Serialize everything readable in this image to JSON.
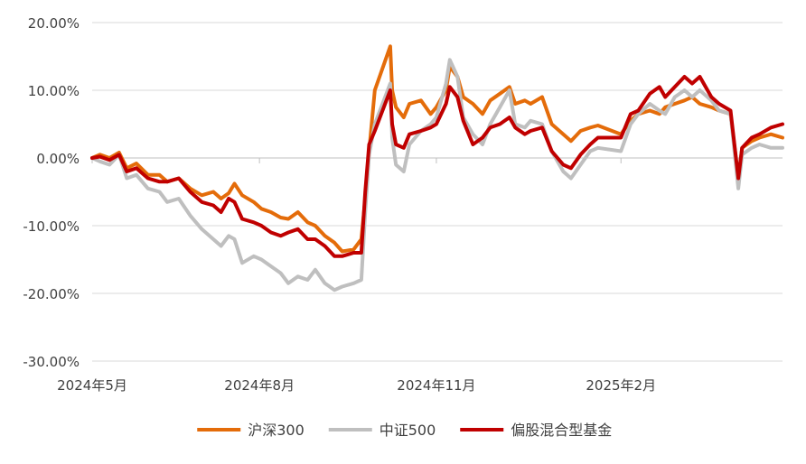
{
  "chart_data": {
    "type": "line",
    "title": "",
    "xlabel": "",
    "ylabel": "",
    "ylim": [
      -30,
      20
    ],
    "y_ticks": [
      20,
      10,
      0,
      -10,
      -20,
      -30
    ],
    "y_tick_labels": [
      "20.00%",
      "10.00%",
      "0.00%",
      "-10.00%",
      "-20.00%",
      "-30.00%"
    ],
    "x_range": [
      "2024-05-06",
      "2025-04-30"
    ],
    "x_ticks": [
      "2024-05-06",
      "2024-08-01",
      "2024-11-01",
      "2025-02-05"
    ],
    "x_tick_labels": [
      "2024年5月",
      "2024年8月",
      "2024年11月",
      "2025年2月"
    ],
    "grid": "horizontal",
    "legend_position": "bottom-center",
    "series": [
      {
        "name": "沪深300",
        "color": "#e46c0a",
        "points": [
          [
            "2024-05-06",
            0
          ],
          [
            "2024-05-10",
            0.5
          ],
          [
            "2024-05-15",
            0
          ],
          [
            "2024-05-20",
            0.8
          ],
          [
            "2024-05-24",
            -1.5
          ],
          [
            "2024-05-29",
            -0.8
          ],
          [
            "2024-06-04",
            -2.5
          ],
          [
            "2024-06-10",
            -2.5
          ],
          [
            "2024-06-14",
            -3.5
          ],
          [
            "2024-06-20",
            -3.0
          ],
          [
            "2024-06-26",
            -4.5
          ],
          [
            "2024-07-02",
            -5.5
          ],
          [
            "2024-07-08",
            -5.0
          ],
          [
            "2024-07-12",
            -6.0
          ],
          [
            "2024-07-16",
            -5.2
          ],
          [
            "2024-07-19",
            -3.8
          ],
          [
            "2024-07-23",
            -5.5
          ],
          [
            "2024-07-29",
            -6.5
          ],
          [
            "2024-08-02",
            -7.5
          ],
          [
            "2024-08-07",
            -8.0
          ],
          [
            "2024-08-12",
            -8.8
          ],
          [
            "2024-08-16",
            -9.0
          ],
          [
            "2024-08-21",
            -8.0
          ],
          [
            "2024-08-26",
            -9.5
          ],
          [
            "2024-08-30",
            -10.0
          ],
          [
            "2024-09-04",
            -11.5
          ],
          [
            "2024-09-09",
            -12.5
          ],
          [
            "2024-09-13",
            -13.8
          ],
          [
            "2024-09-19",
            -13.5
          ],
          [
            "2024-09-23",
            -12.0
          ],
          [
            "2024-09-25",
            -6.0
          ],
          [
            "2024-09-27",
            1.0
          ],
          [
            "2024-09-30",
            10.0
          ],
          [
            "2024-10-08",
            16.5
          ],
          [
            "2024-10-09",
            10.0
          ],
          [
            "2024-10-11",
            7.5
          ],
          [
            "2024-10-15",
            6.0
          ],
          [
            "2024-10-18",
            8.0
          ],
          [
            "2024-10-24",
            8.5
          ],
          [
            "2024-10-29",
            6.5
          ],
          [
            "2024-11-01",
            7.5
          ],
          [
            "2024-11-06",
            10.0
          ],
          [
            "2024-11-08",
            13.5
          ],
          [
            "2024-11-12",
            12.0
          ],
          [
            "2024-11-15",
            9.0
          ],
          [
            "2024-11-20",
            8.0
          ],
          [
            "2024-11-25",
            6.5
          ],
          [
            "2024-11-29",
            8.5
          ],
          [
            "2024-12-04",
            9.5
          ],
          [
            "2024-12-09",
            10.5
          ],
          [
            "2024-12-12",
            8.0
          ],
          [
            "2024-12-17",
            8.5
          ],
          [
            "2024-12-20",
            8.0
          ],
          [
            "2024-12-26",
            9.0
          ],
          [
            "2024-12-31",
            5.0
          ],
          [
            "2025-01-06",
            3.5
          ],
          [
            "2025-01-10",
            2.5
          ],
          [
            "2025-01-15",
            4.0
          ],
          [
            "2025-01-20",
            4.5
          ],
          [
            "2025-01-24",
            4.8
          ],
          [
            "2025-02-05",
            3.5
          ],
          [
            "2025-02-10",
            5.5
          ],
          [
            "2025-02-14",
            6.5
          ],
          [
            "2025-02-20",
            7.0
          ],
          [
            "2025-02-25",
            6.5
          ],
          [
            "2025-02-28",
            7.5
          ],
          [
            "2025-03-05",
            8.0
          ],
          [
            "2025-03-10",
            8.5
          ],
          [
            "2025-03-14",
            9.0
          ],
          [
            "2025-03-18",
            8.0
          ],
          [
            "2025-03-24",
            7.5
          ],
          [
            "2025-03-28",
            7.0
          ],
          [
            "2025-04-03",
            6.5
          ],
          [
            "2025-04-07",
            -3.0
          ],
          [
            "2025-04-09",
            1.5
          ],
          [
            "2025-04-14",
            2.5
          ],
          [
            "2025-04-18",
            3.0
          ],
          [
            "2025-04-24",
            3.5
          ],
          [
            "2025-04-30",
            3.0
          ]
        ]
      },
      {
        "name": "中证500",
        "color": "#bfbfbf",
        "points": [
          [
            "2024-05-06",
            0
          ],
          [
            "2024-05-10",
            -0.5
          ],
          [
            "2024-05-15",
            -1.0
          ],
          [
            "2024-05-20",
            0.5
          ],
          [
            "2024-05-24",
            -3.0
          ],
          [
            "2024-05-29",
            -2.5
          ],
          [
            "2024-06-04",
            -4.5
          ],
          [
            "2024-06-10",
            -5.0
          ],
          [
            "2024-06-14",
            -6.5
          ],
          [
            "2024-06-20",
            -6.0
          ],
          [
            "2024-06-26",
            -8.5
          ],
          [
            "2024-07-02",
            -10.5
          ],
          [
            "2024-07-08",
            -12.0
          ],
          [
            "2024-07-12",
            -13.0
          ],
          [
            "2024-07-16",
            -11.5
          ],
          [
            "2024-07-19",
            -12.0
          ],
          [
            "2024-07-23",
            -15.5
          ],
          [
            "2024-07-29",
            -14.5
          ],
          [
            "2024-08-02",
            -15.0
          ],
          [
            "2024-08-07",
            -16.0
          ],
          [
            "2024-08-12",
            -17.0
          ],
          [
            "2024-08-16",
            -18.5
          ],
          [
            "2024-08-21",
            -17.5
          ],
          [
            "2024-08-26",
            -18.0
          ],
          [
            "2024-08-30",
            -16.5
          ],
          [
            "2024-09-04",
            -18.5
          ],
          [
            "2024-09-09",
            -19.5
          ],
          [
            "2024-09-13",
            -19.0
          ],
          [
            "2024-09-19",
            -18.5
          ],
          [
            "2024-09-23",
            -18.0
          ],
          [
            "2024-09-25",
            -8.0
          ],
          [
            "2024-09-27",
            0.5
          ],
          [
            "2024-09-30",
            5.0
          ],
          [
            "2024-10-08",
            11.0
          ],
          [
            "2024-10-09",
            3.0
          ],
          [
            "2024-10-11",
            -1.0
          ],
          [
            "2024-10-15",
            -2.0
          ],
          [
            "2024-10-18",
            2.0
          ],
          [
            "2024-10-24",
            4.0
          ],
          [
            "2024-10-29",
            5.0
          ],
          [
            "2024-11-01",
            6.0
          ],
          [
            "2024-11-06",
            11.0
          ],
          [
            "2024-11-08",
            14.5
          ],
          [
            "2024-11-12",
            12.0
          ],
          [
            "2024-11-15",
            6.0
          ],
          [
            "2024-11-20",
            3.5
          ],
          [
            "2024-11-25",
            2.0
          ],
          [
            "2024-11-29",
            5.0
          ],
          [
            "2024-12-04",
            7.5
          ],
          [
            "2024-12-09",
            10.0
          ],
          [
            "2024-12-12",
            5.0
          ],
          [
            "2024-12-17",
            4.5
          ],
          [
            "2024-12-20",
            5.5
          ],
          [
            "2024-12-26",
            5.0
          ],
          [
            "2024-12-31",
            1.0
          ],
          [
            "2025-01-06",
            -2.0
          ],
          [
            "2025-01-10",
            -3.0
          ],
          [
            "2025-01-15",
            -1.0
          ],
          [
            "2025-01-20",
            1.0
          ],
          [
            "2025-01-24",
            1.5
          ],
          [
            "2025-02-05",
            1.0
          ],
          [
            "2025-02-10",
            5.0
          ],
          [
            "2025-02-14",
            6.5
          ],
          [
            "2025-02-20",
            8.0
          ],
          [
            "2025-02-25",
            7.0
          ],
          [
            "2025-02-28",
            6.5
          ],
          [
            "2025-03-05",
            9.0
          ],
          [
            "2025-03-10",
            10.0
          ],
          [
            "2025-03-14",
            9.0
          ],
          [
            "2025-03-18",
            10.0
          ],
          [
            "2025-03-24",
            8.5
          ],
          [
            "2025-03-28",
            7.0
          ],
          [
            "2025-04-03",
            6.5
          ],
          [
            "2025-04-07",
            -4.5
          ],
          [
            "2025-04-09",
            0.5
          ],
          [
            "2025-04-14",
            1.5
          ],
          [
            "2025-04-18",
            2.0
          ],
          [
            "2025-04-24",
            1.5
          ],
          [
            "2025-04-30",
            1.5
          ]
        ]
      },
      {
        "name": "偏股混合型基金",
        "color": "#c00000",
        "points": [
          [
            "2024-05-06",
            0
          ],
          [
            "2024-05-10",
            0.2
          ],
          [
            "2024-05-15",
            -0.3
          ],
          [
            "2024-05-20",
            0.5
          ],
          [
            "2024-05-24",
            -2.0
          ],
          [
            "2024-05-29",
            -1.5
          ],
          [
            "2024-06-04",
            -3.0
          ],
          [
            "2024-06-10",
            -3.5
          ],
          [
            "2024-06-14",
            -3.5
          ],
          [
            "2024-06-20",
            -3.0
          ],
          [
            "2024-06-26",
            -5.0
          ],
          [
            "2024-07-02",
            -6.5
          ],
          [
            "2024-07-08",
            -7.0
          ],
          [
            "2024-07-12",
            -8.0
          ],
          [
            "2024-07-16",
            -6.0
          ],
          [
            "2024-07-19",
            -6.5
          ],
          [
            "2024-07-23",
            -9.0
          ],
          [
            "2024-07-29",
            -9.5
          ],
          [
            "2024-08-02",
            -10.0
          ],
          [
            "2024-08-07",
            -11.0
          ],
          [
            "2024-08-12",
            -11.5
          ],
          [
            "2024-08-16",
            -11.0
          ],
          [
            "2024-08-21",
            -10.5
          ],
          [
            "2024-08-26",
            -12.0
          ],
          [
            "2024-08-30",
            -12.0
          ],
          [
            "2024-09-04",
            -13.0
          ],
          [
            "2024-09-09",
            -14.5
          ],
          [
            "2024-09-13",
            -14.5
          ],
          [
            "2024-09-19",
            -14.0
          ],
          [
            "2024-09-23",
            -14.0
          ],
          [
            "2024-09-25",
            -5.0
          ],
          [
            "2024-09-27",
            2.0
          ],
          [
            "2024-09-30",
            4.0
          ],
          [
            "2024-10-08",
            10.0
          ],
          [
            "2024-10-09",
            5.0
          ],
          [
            "2024-10-11",
            2.0
          ],
          [
            "2024-10-15",
            1.5
          ],
          [
            "2024-10-18",
            3.5
          ],
          [
            "2024-10-24",
            4.0
          ],
          [
            "2024-10-29",
            4.5
          ],
          [
            "2024-11-01",
            5.0
          ],
          [
            "2024-11-06",
            8.0
          ],
          [
            "2024-11-08",
            10.5
          ],
          [
            "2024-11-12",
            9.0
          ],
          [
            "2024-11-15",
            5.5
          ],
          [
            "2024-11-20",
            2.0
          ],
          [
            "2024-11-25",
            3.0
          ],
          [
            "2024-11-29",
            4.5
          ],
          [
            "2024-12-04",
            5.0
          ],
          [
            "2024-12-09",
            6.0
          ],
          [
            "2024-12-12",
            4.5
          ],
          [
            "2024-12-17",
            3.5
          ],
          [
            "2024-12-20",
            4.0
          ],
          [
            "2024-12-26",
            4.5
          ],
          [
            "2024-12-31",
            1.0
          ],
          [
            "2025-01-06",
            -1.0
          ],
          [
            "2025-01-10",
            -1.5
          ],
          [
            "2025-01-15",
            0.5
          ],
          [
            "2025-01-20",
            2.0
          ],
          [
            "2025-01-24",
            3.0
          ],
          [
            "2025-02-05",
            3.0
          ],
          [
            "2025-02-10",
            6.5
          ],
          [
            "2025-02-14",
            7.0
          ],
          [
            "2025-02-20",
            9.5
          ],
          [
            "2025-02-25",
            10.5
          ],
          [
            "2025-02-28",
            9.0
          ],
          [
            "2025-03-05",
            10.5
          ],
          [
            "2025-03-10",
            12.0
          ],
          [
            "2025-03-14",
            11.0
          ],
          [
            "2025-03-18",
            12.0
          ],
          [
            "2025-03-24",
            9.0
          ],
          [
            "2025-03-28",
            8.0
          ],
          [
            "2025-04-03",
            7.0
          ],
          [
            "2025-04-07",
            -3.0
          ],
          [
            "2025-04-09",
            1.5
          ],
          [
            "2025-04-14",
            3.0
          ],
          [
            "2025-04-18",
            3.5
          ],
          [
            "2025-04-24",
            4.5
          ],
          [
            "2025-04-30",
            5.0
          ]
        ]
      }
    ]
  }
}
